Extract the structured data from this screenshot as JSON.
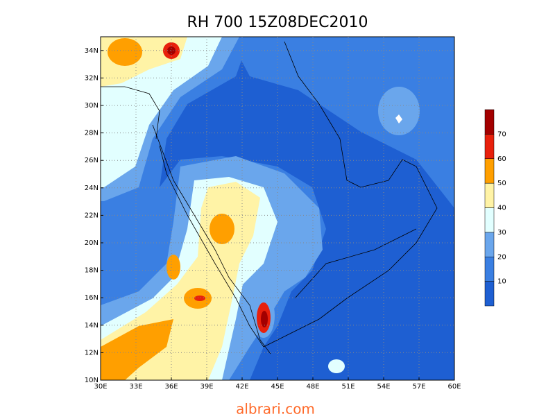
{
  "title": "RH 700 15Z08DEC2010",
  "lon_labels": [
    "30E",
    "33E",
    "36E",
    "39E",
    "42E",
    "45E",
    "48E",
    "51E",
    "54E",
    "57E",
    "60E"
  ],
  "lat_labels": [
    "10N",
    "12N",
    "14N",
    "16N",
    "18N",
    "20N",
    "22N",
    "24N",
    "26N",
    "28N",
    "30N",
    "32N",
    "34N"
  ],
  "colorbar": {
    "labels": [
      "10",
      "20",
      "30",
      "40",
      "50",
      "60",
      "70"
    ],
    "colors": [
      "#1e5fd2",
      "#3a7fe2",
      "#6aa6ec",
      "#e2ffff",
      "#fff3a6",
      "#ff9f00",
      "#e8200c",
      "#a30000"
    ]
  },
  "footer": "albrari.com"
}
